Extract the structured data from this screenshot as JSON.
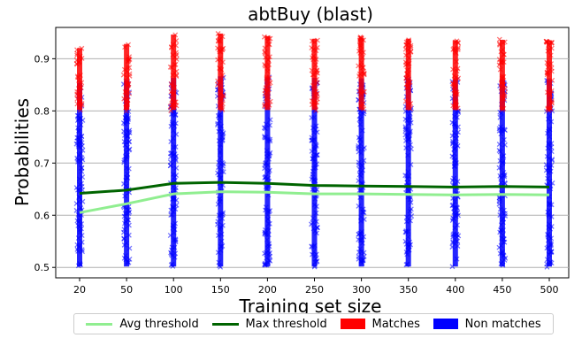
{
  "chart_data": {
    "type": "scatter",
    "title": "abtBuy (blast)",
    "xlabel": "Training set size",
    "ylabel": "Probabilities",
    "categories": [
      "20",
      "50",
      "100",
      "150",
      "200",
      "250",
      "300",
      "350",
      "400",
      "450",
      "500"
    ],
    "ylim": [
      0.48,
      0.96
    ],
    "yticks": [
      "0.5",
      "0.6",
      "0.7",
      "0.8",
      "0.9"
    ],
    "grid": true,
    "legend_position": "bottom",
    "series": [
      {
        "name": "Avg threshold",
        "kind": "line",
        "color": "#90ee90",
        "values": [
          0.605,
          0.622,
          0.641,
          0.645,
          0.644,
          0.641,
          0.641,
          0.64,
          0.639,
          0.64,
          0.639
        ]
      },
      {
        "name": "Max threshold",
        "kind": "line",
        "color": "#006400",
        "values": [
          0.642,
          0.648,
          0.661,
          0.663,
          0.661,
          0.657,
          0.656,
          0.655,
          0.654,
          0.655,
          0.654
        ]
      },
      {
        "name": "Matches",
        "kind": "scatter",
        "color": "#ff0000",
        "ranges": [
          [
            0.8,
            0.922
          ],
          [
            0.8,
            0.93
          ],
          [
            0.8,
            0.948
          ],
          [
            0.8,
            0.95
          ],
          [
            0.8,
            0.945
          ],
          [
            0.8,
            0.94
          ],
          [
            0.8,
            0.942
          ],
          [
            0.8,
            0.94
          ],
          [
            0.8,
            0.937
          ],
          [
            0.8,
            0.938
          ],
          [
            0.8,
            0.937
          ]
        ]
      },
      {
        "name": "Non matches",
        "kind": "scatter",
        "color": "#0000ff",
        "ranges": [
          [
            0.5,
            0.855
          ],
          [
            0.5,
            0.86
          ],
          [
            0.5,
            0.865
          ],
          [
            0.5,
            0.868
          ],
          [
            0.5,
            0.866
          ],
          [
            0.5,
            0.865
          ],
          [
            0.5,
            0.864
          ],
          [
            0.5,
            0.863
          ],
          [
            0.5,
            0.862
          ],
          [
            0.5,
            0.862
          ],
          [
            0.5,
            0.862
          ]
        ]
      }
    ]
  }
}
